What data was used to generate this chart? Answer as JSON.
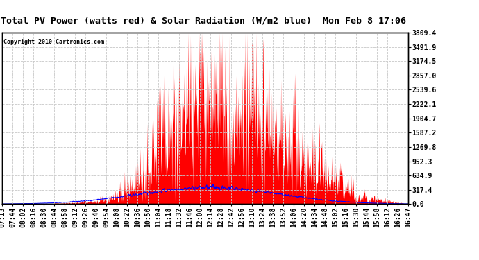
{
  "title": "Total PV Power (watts red) & Solar Radiation (W/m2 blue)  Mon Feb 8 17:06",
  "copyright": "Copyright 2010 Cartronics.com",
  "yticks": [
    0.0,
    317.4,
    634.9,
    952.3,
    1269.8,
    1587.2,
    1904.7,
    2222.1,
    2539.6,
    2857.0,
    3174.5,
    3491.9,
    3809.4
  ],
  "ytick_labels": [
    "0.0",
    "317.4",
    "634.9",
    "952.3",
    "1269.8",
    "1587.2",
    "1904.7",
    "2222.1",
    "2539.6",
    "2857.0",
    "3174.5",
    "3491.9",
    "3809.4"
  ],
  "ymax": 3809.4,
  "bg_color": "#ffffff",
  "plot_bg_color": "#ffffff",
  "grid_color": "#c8c8c8",
  "red_color": "#ff0000",
  "blue_color": "#0000ff",
  "title_fontsize": 9.5,
  "tick_fontsize": 7,
  "copyright_fontsize": 6,
  "xtick_labels": [
    "07:13",
    "07:44",
    "08:02",
    "08:16",
    "08:30",
    "08:44",
    "08:58",
    "09:12",
    "09:26",
    "09:40",
    "09:54",
    "10:08",
    "10:22",
    "10:36",
    "10:50",
    "11:04",
    "11:18",
    "11:32",
    "11:46",
    "12:00",
    "12:14",
    "12:28",
    "12:42",
    "12:56",
    "13:10",
    "13:24",
    "13:38",
    "13:52",
    "14:06",
    "14:20",
    "14:34",
    "14:48",
    "15:02",
    "15:16",
    "15:30",
    "15:44",
    "15:58",
    "16:12",
    "16:26",
    "16:47"
  ]
}
